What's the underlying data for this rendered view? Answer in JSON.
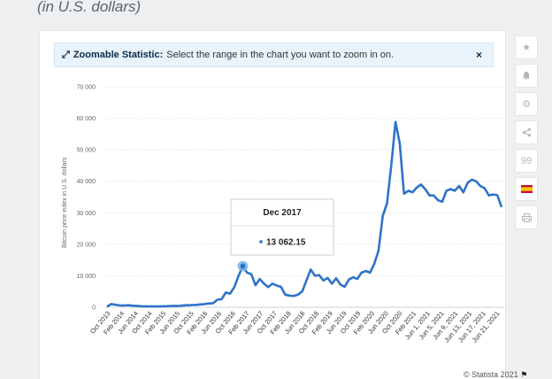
{
  "heading": "(in U.S. dollars)",
  "banner": {
    "icon": "expand-arrows-icon",
    "label": "Zoomable Statistic:",
    "text": "Select the range in the chart you want to zoom in on.",
    "close": "×"
  },
  "tools": [
    {
      "name": "star-icon",
      "glyph": "★"
    },
    {
      "name": "bell-icon",
      "glyph": "🔔"
    },
    {
      "name": "gear-icon",
      "glyph": "⚙"
    },
    {
      "name": "share-icon",
      "glyph": "<"
    },
    {
      "name": "quote-icon",
      "glyph": "99"
    },
    {
      "name": "flag-icon",
      "glyph": "▬"
    },
    {
      "name": "print-icon",
      "glyph": "⎙"
    }
  ],
  "tooltip": {
    "title": "Dec 2017",
    "value": "13 062.15"
  },
  "credit": "© Statista 2021",
  "colors": {
    "line": "#2e73c8",
    "highlight": "#7fb2ea",
    "grid": "#e6e6e6"
  },
  "chart_data": {
    "type": "line",
    "ylabel": "Bitcoin price index in U.S. dollars",
    "ylim": [
      0,
      70000
    ],
    "yticks": [
      0,
      10000,
      20000,
      30000,
      40000,
      50000,
      60000,
      70000
    ],
    "ytick_labels": [
      "0",
      "10 000",
      "20 000",
      "30 000",
      "40 000",
      "50 000",
      "60 000",
      "70 000"
    ],
    "xtick_labels": [
      "Oct 2013",
      "Feb 2014",
      "Jun 2014",
      "Oct 2014",
      "Feb 2015",
      "Jun 2015",
      "Oct 2015",
      "Feb 2016",
      "Jun 2016",
      "Oct 2016",
      "Feb 2017",
      "Jun 2017",
      "Oct 2017",
      "Feb 2018",
      "Jun 2018",
      "Oct 2018",
      "Feb 2019",
      "Jun 2019",
      "Oct 2019",
      "Feb 2020",
      "Jun 2020",
      "Oct 2020",
      "Feb 2021",
      "Jun 1, 2021",
      "Jun 5, 2021",
      "Jun 9, 2021",
      "Jun 13, 2021",
      "Jun 17, 2021",
      "Jun 21, 2021"
    ],
    "series": [
      {
        "values": [
          200,
          1000,
          800,
          600,
          550,
          650,
          500,
          450,
          350,
          300,
          280,
          250,
          260,
          300,
          350,
          400,
          450,
          430,
          600,
          650,
          700,
          750,
          900,
          1000,
          1200,
          1300,
          2400,
          2600,
          4700,
          4300,
          6400,
          10000,
          13062,
          11000,
          10500,
          7000,
          9000,
          7500,
          6400,
          7500,
          6900,
          6500,
          4000,
          3700,
          3600,
          4000,
          5000,
          8500,
          12000,
          10000,
          10200,
          8500,
          9300,
          7500,
          9200,
          7200,
          6500,
          8800,
          9500,
          9000,
          11000,
          11500,
          11000,
          13800,
          18000,
          29000,
          33000,
          45000,
          58800,
          52000,
          36000,
          37000,
          36500,
          38000,
          39000,
          37500,
          35500,
          35500,
          34000,
          33500,
          37000,
          37500,
          37000,
          38500,
          36500,
          39500,
          40500,
          40000,
          38500,
          37800,
          35500,
          35800,
          35600,
          31800
        ]
      }
    ],
    "highlight": {
      "label": "Dec 2017",
      "value": 13062.15
    }
  }
}
